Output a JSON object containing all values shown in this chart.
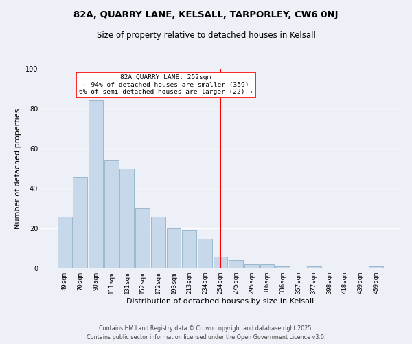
{
  "title": "82A, QUARRY LANE, KELSALL, TARPORLEY, CW6 0NJ",
  "subtitle": "Size of property relative to detached houses in Kelsall",
  "xlabel": "Distribution of detached houses by size in Kelsall",
  "ylabel": "Number of detached properties",
  "categories": [
    "49sqm",
    "70sqm",
    "90sqm",
    "111sqm",
    "131sqm",
    "152sqm",
    "172sqm",
    "193sqm",
    "213sqm",
    "234sqm",
    "254sqm",
    "275sqm",
    "295sqm",
    "316sqm",
    "336sqm",
    "357sqm",
    "377sqm",
    "398sqm",
    "418sqm",
    "439sqm",
    "459sqm"
  ],
  "values": [
    26,
    46,
    84,
    54,
    50,
    30,
    26,
    20,
    19,
    15,
    6,
    4,
    2,
    2,
    1,
    0,
    1,
    0,
    0,
    0,
    1
  ],
  "bar_color": "#c8d8eb",
  "bar_edge_color": "#9ab8d0",
  "red_line_index": 10,
  "annotation_title": "82A QUARRY LANE: 252sqm",
  "annotation_line1": "← 94% of detached houses are smaller (359)",
  "annotation_line2": "6% of semi-detached houses are larger (22) →",
  "ylim": [
    0,
    100
  ],
  "yticks": [
    0,
    20,
    40,
    60,
    80,
    100
  ],
  "footnote1": "Contains HM Land Registry data © Crown copyright and database right 2025.",
  "footnote2": "Contains public sector information licensed under the Open Government Licence v3.0.",
  "bg_color": "#edf1f7",
  "grid_color": "#ffffff",
  "title_fontsize": 9.5,
  "subtitle_fontsize": 8.5,
  "label_fontsize": 8,
  "tick_fontsize": 6.5,
  "footnote_fontsize": 5.8
}
